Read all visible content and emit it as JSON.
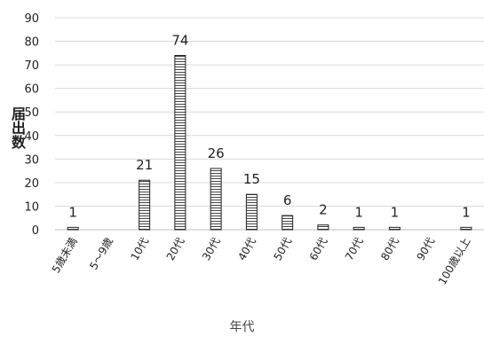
{
  "chart_data": {
    "type": "bar",
    "categories": [
      "5歳未満",
      "5～9歳",
      "10代",
      "20代",
      "30代",
      "40代",
      "50代",
      "60代",
      "70代",
      "80代",
      "90代",
      "100歳以上"
    ],
    "values": [
      1,
      null,
      21,
      74,
      26,
      15,
      6,
      2,
      1,
      1,
      null,
      1
    ],
    "data_labels": [
      "1",
      "",
      "21",
      "74",
      "26",
      "15",
      "6",
      "2",
      "1",
      "1",
      "",
      "1"
    ],
    "xlabel": "年代",
    "ylabel": "届出数",
    "ylim": [
      0,
      90
    ],
    "yticks": [
      0,
      10,
      20,
      30,
      40,
      50,
      60,
      70,
      80,
      90
    ],
    "grid": true,
    "bar_fill": "horizontal-stripes",
    "colors": {
      "bar_edge": "#222222",
      "stripe": "#444444",
      "grid": "#d9d9d9",
      "text": "#222222"
    }
  }
}
